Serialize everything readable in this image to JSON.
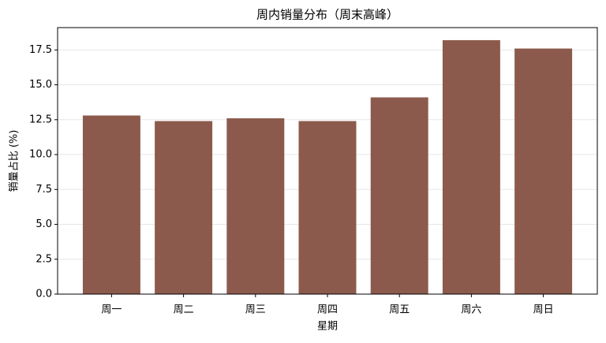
{
  "chart_data": {
    "type": "bar",
    "title": "周内销量分布（周末高峰）",
    "x_label": "星期",
    "y_label": "销量占比 (%)",
    "categories": [
      "周一",
      "周二",
      "周三",
      "周四",
      "周五",
      "周六",
      "周日"
    ],
    "values": [
      12.8,
      12.4,
      12.6,
      12.4,
      14.1,
      18.2,
      17.6
    ],
    "color": "#8c5a4c",
    "ylim": [
      0,
      19.1
    ],
    "yticks": [
      {
        "value": 0,
        "label": "0.0"
      },
      2.5,
      {
        "value": 5,
        "label": "5.0"
      },
      7.5,
      {
        "value": 10,
        "label": "10.0"
      },
      12.5,
      {
        "value": 15,
        "label": "15.0"
      },
      17.5
    ],
    "grid": true
  }
}
